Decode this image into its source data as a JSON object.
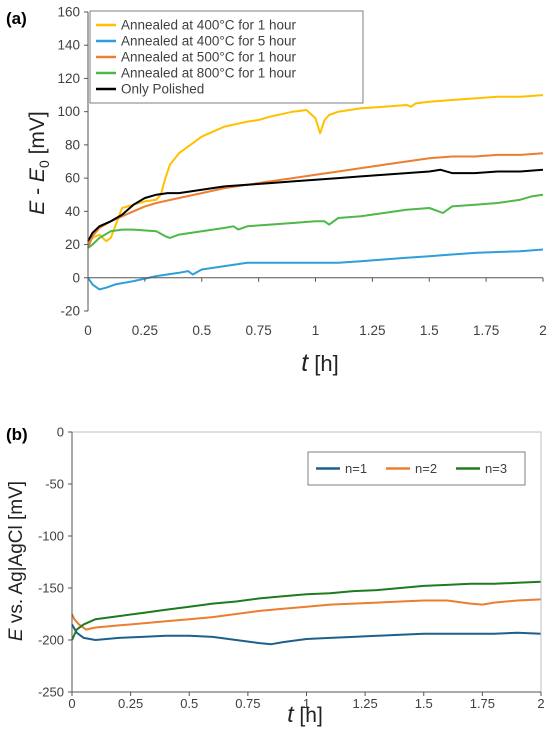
{
  "figure": {
    "panels": [
      {
        "panel_label": "(a)",
        "chart_data": {
          "type": "line",
          "ylabel": "E - E0 [mV]",
          "ylabel_parts": {
            "main": "E",
            "sep": " - ",
            "sub_base": "E",
            "sub": "0",
            "unit": " [mV]"
          },
          "xlabel_parts": {
            "var": "t",
            "unit": " [h]"
          },
          "xlim": [
            0,
            2
          ],
          "ylim": [
            -20,
            160
          ],
          "xticks": [
            0,
            0.25,
            0.5,
            0.75,
            1,
            1.25,
            1.5,
            1.75,
            2
          ],
          "xtick_labels": [
            "0",
            "0.25",
            "0.5",
            "0.75",
            "1",
            "1.25",
            "1.5",
            "1.75",
            "2"
          ],
          "yticks": [
            -20,
            0,
            20,
            40,
            60,
            80,
            100,
            120,
            140,
            160
          ],
          "ytick_labels": [
            "-20",
            "0",
            "20",
            "40",
            "60",
            "80",
            "100",
            "120",
            "140",
            "160"
          ],
          "grid": false,
          "legend": "top-left",
          "series": [
            {
              "name": "Annealed at 400°C for 1 hour",
              "color": "#FFC000",
              "x": [
                0,
                0.02,
                0.05,
                0.08,
                0.1,
                0.15,
                0.2,
                0.25,
                0.3,
                0.32,
                0.34,
                0.36,
                0.4,
                0.5,
                0.6,
                0.7,
                0.75,
                0.8,
                0.9,
                0.96,
                1.0,
                1.02,
                1.04,
                1.06,
                1.1,
                1.2,
                1.3,
                1.4,
                1.42,
                1.44,
                1.5,
                1.6,
                1.7,
                1.8,
                1.9,
                2.0
              ],
              "y": [
                20,
                24,
                26,
                22,
                24,
                42,
                44,
                46,
                47,
                50,
                60,
                68,
                75,
                85,
                91,
                94,
                95,
                97,
                100,
                101,
                96,
                87,
                95,
                98,
                100,
                102,
                103,
                104,
                103,
                105,
                106,
                107,
                108,
                109,
                109,
                110
              ]
            },
            {
              "name": "Annealed at 400°C for 5 hour",
              "color": "#2E9FD8",
              "x": [
                0,
                0.02,
                0.05,
                0.08,
                0.12,
                0.2,
                0.3,
                0.4,
                0.44,
                0.46,
                0.5,
                0.6,
                0.7,
                0.8,
                0.9,
                1.0,
                1.1,
                1.2,
                1.3,
                1.4,
                1.5,
                1.6,
                1.7,
                1.8,
                1.9,
                2.0
              ],
              "y": [
                0,
                -4,
                -7,
                -6,
                -4,
                -2,
                1,
                3,
                4,
                2,
                5,
                7,
                9,
                9,
                9,
                9,
                9,
                10,
                11,
                12,
                13,
                14,
                15,
                15.5,
                16,
                17
              ]
            },
            {
              "name": "Annealed at 500°C for 1 hour",
              "color": "#ED7D31",
              "x": [
                0,
                0.02,
                0.05,
                0.1,
                0.15,
                0.2,
                0.25,
                0.3,
                0.4,
                0.5,
                0.6,
                0.7,
                0.8,
                0.9,
                1.0,
                1.1,
                1.2,
                1.3,
                1.4,
                1.5,
                1.6,
                1.7,
                1.8,
                1.9,
                2.0
              ],
              "y": [
                18,
                25,
                30,
                34,
                37,
                40,
                43,
                45,
                48,
                51,
                54,
                56,
                58,
                60,
                62,
                64,
                66,
                68,
                70,
                72,
                73,
                73,
                74,
                74,
                75
              ]
            },
            {
              "name": "Annealed at 800°C for 1 hour",
              "color": "#4EB849",
              "x": [
                0,
                0.02,
                0.05,
                0.1,
                0.15,
                0.2,
                0.3,
                0.34,
                0.36,
                0.4,
                0.5,
                0.6,
                0.64,
                0.66,
                0.7,
                0.8,
                0.9,
                1.0,
                1.04,
                1.06,
                1.1,
                1.2,
                1.3,
                1.4,
                1.5,
                1.54,
                1.56,
                1.6,
                1.7,
                1.8,
                1.9,
                1.95,
                2.0
              ],
              "y": [
                18,
                20,
                24,
                28,
                29,
                29,
                28,
                25,
                24,
                26,
                28,
                30,
                31,
                29,
                31,
                32,
                33,
                34,
                34,
                32,
                36,
                37,
                39,
                41,
                42,
                40,
                39,
                43,
                44,
                45,
                47,
                49,
                50
              ]
            },
            {
              "name": "Only Polished",
              "color": "#000000",
              "x": [
                0,
                0.02,
                0.05,
                0.1,
                0.15,
                0.2,
                0.25,
                0.3,
                0.35,
                0.4,
                0.5,
                0.6,
                0.7,
                0.8,
                0.9,
                1.0,
                1.1,
                1.2,
                1.3,
                1.4,
                1.5,
                1.55,
                1.6,
                1.7,
                1.8,
                1.9,
                2.0
              ],
              "y": [
                22,
                27,
                31,
                34,
                38,
                44,
                48,
                50,
                51,
                51,
                53,
                55,
                56,
                57,
                58,
                59,
                60,
                61,
                62,
                63,
                64,
                65,
                63,
                63,
                64,
                64,
                65
              ]
            }
          ]
        }
      },
      {
        "panel_label": "(b)",
        "chart_data": {
          "type": "line",
          "ylabel": "E vs. Ag|AgCl [mV]",
          "ylabel_parts": {
            "var": "E",
            "rest": " vs. Ag|AgCl [mV]"
          },
          "xlabel_parts": {
            "var": "t",
            "unit": " [h]"
          },
          "xlim": [
            0,
            2
          ],
          "ylim": [
            -250,
            0
          ],
          "xticks": [
            0,
            0.25,
            0.5,
            0.75,
            1,
            1.25,
            1.5,
            1.75,
            2
          ],
          "xtick_labels": [
            "0",
            "0.25",
            "0.5",
            "0.75",
            "1",
            "1.25",
            "1.5",
            "1.75",
            "2"
          ],
          "yticks": [
            -250,
            -200,
            -150,
            -100,
            -50,
            0
          ],
          "ytick_labels": [
            "-250",
            "-200",
            "-150",
            "-100",
            "-50",
            "0"
          ],
          "grid": false,
          "legend": "top-right",
          "series": [
            {
              "name": "n=1",
              "color": "#1F5F8B",
              "x": [
                0,
                0.02,
                0.05,
                0.1,
                0.2,
                0.3,
                0.4,
                0.5,
                0.6,
                0.7,
                0.8,
                0.85,
                0.9,
                1.0,
                1.1,
                1.2,
                1.3,
                1.4,
                1.5,
                1.6,
                1.7,
                1.8,
                1.9,
                2.0
              ],
              "y": [
                -185,
                -193,
                -198,
                -200,
                -198,
                -197,
                -196,
                -196,
                -197,
                -200,
                -203,
                -204,
                -202,
                -199,
                -198,
                -197,
                -196,
                -195,
                -194,
                -194,
                -194,
                -194,
                -193,
                -194
              ]
            },
            {
              "name": "n=2",
              "color": "#ED7D31",
              "x": [
                0,
                0.01,
                0.03,
                0.06,
                0.1,
                0.2,
                0.3,
                0.4,
                0.5,
                0.6,
                0.7,
                0.8,
                0.9,
                1.0,
                1.1,
                1.2,
                1.3,
                1.4,
                1.5,
                1.6,
                1.7,
                1.75,
                1.8,
                1.9,
                2.0
              ],
              "y": [
                -175,
                -180,
                -185,
                -190,
                -188,
                -186,
                -184,
                -182,
                -180,
                -178,
                -175,
                -172,
                -170,
                -168,
                -166,
                -165,
                -164,
                -163,
                -162,
                -162,
                -165,
                -166,
                -164,
                -162,
                -161
              ]
            },
            {
              "name": "n=3",
              "color": "#1E7B1E",
              "x": [
                0,
                0.02,
                0.05,
                0.1,
                0.2,
                0.3,
                0.4,
                0.5,
                0.6,
                0.7,
                0.8,
                0.9,
                1.0,
                1.1,
                1.2,
                1.3,
                1.4,
                1.5,
                1.6,
                1.7,
                1.8,
                1.9,
                2.0
              ],
              "y": [
                -200,
                -190,
                -185,
                -180,
                -177,
                -174,
                -171,
                -168,
                -165,
                -163,
                -160,
                -158,
                -156,
                -155,
                -153,
                -152,
                -150,
                -148,
                -147,
                -146,
                -146,
                -145,
                -144
              ]
            }
          ]
        }
      }
    ]
  }
}
